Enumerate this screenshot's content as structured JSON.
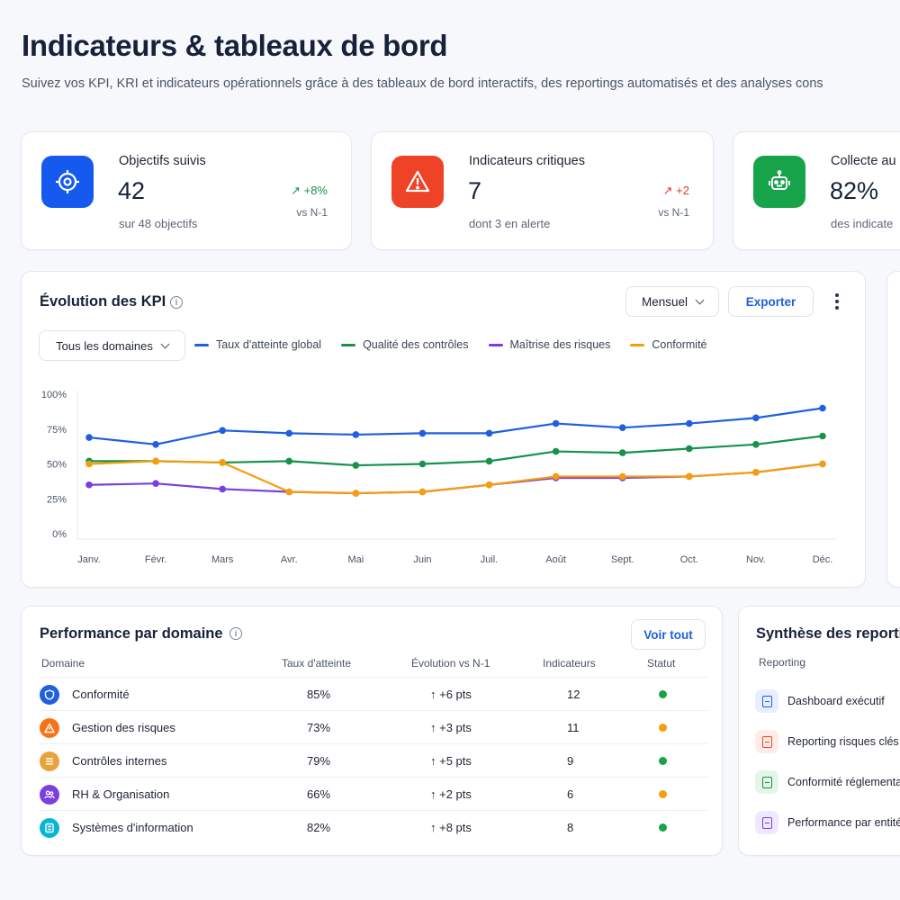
{
  "header": {
    "title": "Indicateurs & tableaux de bord",
    "subtitle": "Suivez vos KPI, KRI et indicateurs opérationnels grâce à des tableaux de bord interactifs, des reportings automatisés et des analyses cons"
  },
  "stats": [
    {
      "label": "Objectifs suivis",
      "value": "42",
      "sub": "sur 48 objectifs",
      "delta": "↗ +8%",
      "compare": "vs N-1",
      "icon": "target-icon",
      "color": "#1659ee",
      "delta_color": "#17944b"
    },
    {
      "label": "Indicateurs critiques",
      "value": "7",
      "sub": "dont 3 en alerte",
      "delta": "↗ +2",
      "compare": "vs N-1",
      "icon": "warning-icon",
      "color": "#ee4327",
      "delta_color": "#e03a2a"
    },
    {
      "label": "Collecte au",
      "value": "82%",
      "sub": "des indicate",
      "icon": "robot-icon",
      "color": "#16a34a"
    }
  ],
  "kpi_chart": {
    "title": "Évolution des KPI",
    "period_select": "Mensuel",
    "export_label": "Exporter",
    "domain_select": "Tous les domaines"
  },
  "chart_data": {
    "type": "line",
    "categories": [
      "Janv.",
      "Févr.",
      "Mars",
      "Avr.",
      "Mai",
      "Juin",
      "Juil.",
      "Août",
      "Sept.",
      "Oct.",
      "Nov.",
      "Déc."
    ],
    "y_ticks": [
      "100%",
      "75%",
      "50%",
      "25%",
      "0%"
    ],
    "ylim": [
      0,
      100
    ],
    "grid": false,
    "legend": "top",
    "series": [
      {
        "name": "Taux d'atteinte global",
        "color": "#1f5fe0",
        "values": [
          69,
          64,
          74,
          72,
          71,
          72,
          72,
          79,
          76,
          79,
          83,
          90
        ]
      },
      {
        "name": "Qualité des contrôles",
        "color": "#16924a",
        "values": [
          52,
          52,
          51,
          52,
          49,
          50,
          52,
          59,
          58,
          61,
          64,
          70
        ]
      },
      {
        "name": "Maîtrise des risques",
        "color": "#7b3fe0",
        "values": [
          35,
          36,
          32,
          30,
          29,
          30,
          35,
          40,
          40,
          41,
          44,
          50
        ]
      },
      {
        "name": "Conformité",
        "color": "#f59e0b",
        "values": [
          50,
          52,
          51,
          30,
          29,
          30,
          35,
          41,
          41,
          41,
          44,
          50
        ]
      }
    ]
  },
  "performance": {
    "title": "Performance par domaine",
    "view_all": "Voir tout",
    "columns": [
      "Domaine",
      "Taux d'atteinte",
      "Évolution vs N-1",
      "Indicateurs",
      "Statut"
    ],
    "rows": [
      {
        "domain": "Conformité",
        "rate": "85%",
        "evolution": "↑ +6 pts",
        "count": "12",
        "status_color": "#16a34a",
        "icon": "shield-icon",
        "icon_color": "#1f5fe0"
      },
      {
        "domain": "Gestion des risques",
        "rate": "73%",
        "evolution": "↑ +3 pts",
        "count": "11",
        "status_color": "#f59e0b",
        "icon": "warning-icon",
        "icon_color": "#f97316"
      },
      {
        "domain": "Contrôles internes",
        "rate": "79%",
        "evolution": "↑ +5 pts",
        "count": "9",
        "status_color": "#16a34a",
        "icon": "checklist-icon",
        "icon_color": "#e9a23b"
      },
      {
        "domain": "RH & Organisation",
        "rate": "66%",
        "evolution": "↑ +2 pts",
        "count": "6",
        "status_color": "#f59e0b",
        "icon": "people-icon",
        "icon_color": "#7b3fe0"
      },
      {
        "domain": "Systèmes d'information",
        "rate": "82%",
        "evolution": "↑ +8 pts",
        "count": "8",
        "status_color": "#16a34a",
        "icon": "database-icon",
        "icon_color": "#06b6d4"
      }
    ]
  },
  "reports": {
    "title": "Synthèse des reporti",
    "column": "Reporting",
    "items": [
      {
        "label": "Dashboard exécutif",
        "color": "#1f5fe0",
        "bg": "#e6eeff",
        "icon": "document-icon"
      },
      {
        "label": "Reporting risques clés",
        "color": "#ee4327",
        "bg": "#ffece8",
        "icon": "document-icon"
      },
      {
        "label": "Conformité réglementa",
        "color": "#16924a",
        "bg": "#e4f6ea",
        "icon": "document-icon"
      },
      {
        "label": "Performance par entité",
        "color": "#7b3fe0",
        "bg": "#efe8ff",
        "icon": "document-icon"
      }
    ]
  }
}
